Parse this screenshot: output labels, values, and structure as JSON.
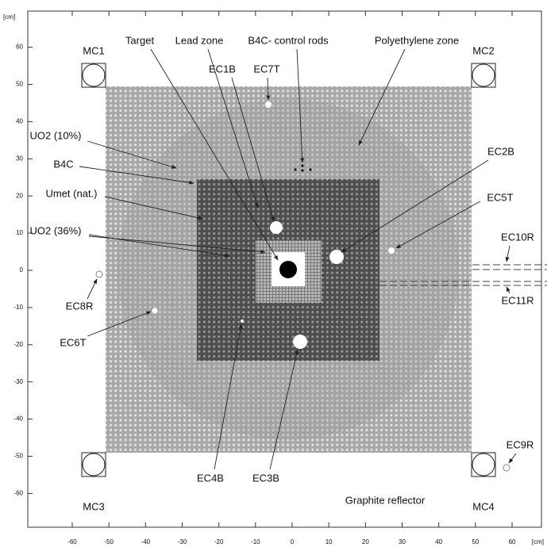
{
  "axes": {
    "x_unit": "[cm]",
    "y_unit": "[cm]",
    "xticks": [
      -60,
      -50,
      -40,
      -30,
      -20,
      -10,
      0,
      10,
      20,
      30,
      40,
      50,
      60
    ],
    "yticks": [
      60,
      50,
      40,
      30,
      20,
      10,
      0,
      -10,
      -20,
      -30,
      -40,
      -50,
      -60
    ]
  },
  "annotations": [
    "MC1",
    "MC2",
    "MC3",
    "MC4",
    "Target",
    "Lead zone",
    "B4C- control rods",
    "Polyethylene zone",
    "EC1B",
    "EC7T",
    "EC2B",
    "EC5T",
    "EC10R",
    "EC11R",
    "EC9R",
    "EC8R",
    "EC6T",
    "EC4B",
    "EC3B",
    "UO2 (10%)",
    "B4C",
    "Umet (nat.)",
    "UO2 (36%)",
    "Graphite reflector"
  ]
}
